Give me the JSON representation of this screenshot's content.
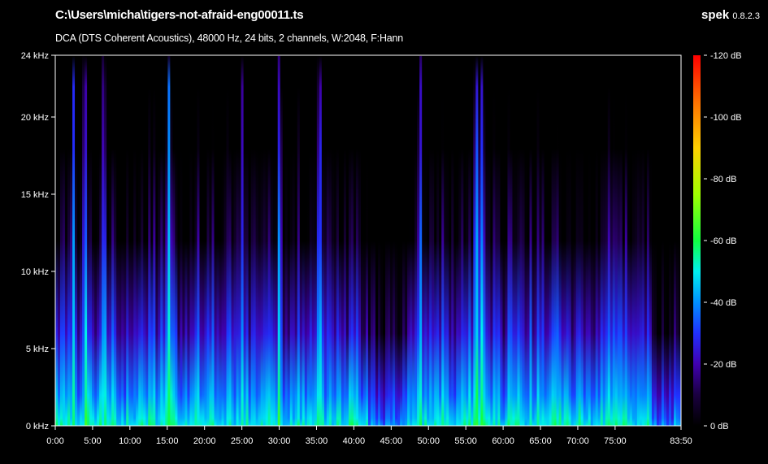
{
  "header": {
    "file_path": "C:\\Users\\micha\\tigers-not-afraid-eng00011.ts",
    "stream_info": "DCA (DTS Coherent Acoustics), 48000 Hz, 24 bits, 2 channels, W:2048, F:Hann",
    "app_name": "spek",
    "app_version": "0.8.2.3"
  },
  "chart_data": {
    "type": "heatmap",
    "title": "C:\\Users\\micha\\tigers-not-afraid-eng00011.ts",
    "subtitle": "DCA (DTS Coherent Acoustics), 48000 Hz, 24 bits, 2 channels, W:2048, F:Hann",
    "x_range_minutes": [
      0,
      83.833
    ],
    "x_ticks": [
      "0:00",
      "5:00",
      "10:00",
      "15:00",
      "20:00",
      "25:00",
      "30:00",
      "35:00",
      "40:00",
      "45:00",
      "50:00",
      "55:00",
      "60:00",
      "65:00",
      "70:00",
      "75:00",
      "83:50"
    ],
    "x_tick_values_minutes": [
      0,
      5,
      10,
      15,
      20,
      25,
      30,
      35,
      40,
      45,
      50,
      55,
      60,
      65,
      70,
      75,
      83.833
    ],
    "y_range_khz": [
      0,
      24
    ],
    "y_ticks": [
      "24 kHz",
      "20 kHz",
      "15 kHz",
      "10 kHz",
      "5 kHz",
      "0 kHz"
    ],
    "y_tick_values_khz": [
      24,
      20,
      15,
      10,
      5,
      0
    ],
    "colorbar_ticks": [
      "0 dB",
      "-20 dB",
      "-40 dB",
      "-60 dB",
      "-80 dB",
      "-100 dB",
      "-120 dB"
    ],
    "colorbar_tick_values_db": [
      0,
      -20,
      -40,
      -60,
      -80,
      -100,
      -120
    ],
    "colorbar_range_db": [
      -120,
      0
    ],
    "colormap": [
      {
        "db": -120,
        "color": "#000000"
      },
      {
        "db": -110,
        "color": "#1a0040"
      },
      {
        "db": -100,
        "color": "#4000b0"
      },
      {
        "db": -90,
        "color": "#2030ff"
      },
      {
        "db": -80,
        "color": "#0090ff"
      },
      {
        "db": -70,
        "color": "#00f0f0"
      },
      {
        "db": -60,
        "color": "#10ff40"
      },
      {
        "db": -45,
        "color": "#a0ff00"
      },
      {
        "db": -30,
        "color": "#ffd000"
      },
      {
        "db": -15,
        "color": "#ff7000"
      },
      {
        "db": 0,
        "color": "#ff0000"
      }
    ],
    "loud_passages_minutes": [
      2.4,
      4.0,
      6.5,
      15.2,
      25.0,
      30.0,
      35.5,
      48.8,
      56.5,
      57.2
    ],
    "grid": false
  }
}
